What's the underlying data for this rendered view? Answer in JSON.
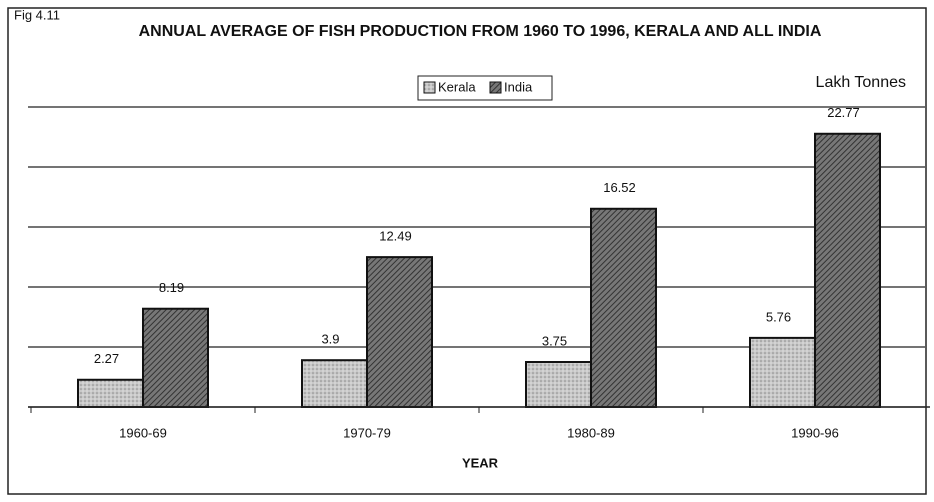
{
  "chart_data": {
    "type": "bar",
    "figure_label": "Fig 4.11",
    "title": "ANNUAL AVERAGE OF FISH PRODUCTION FROM 1960 TO 1996, KERALA AND ALL INDIA",
    "ylabel": "Lakh Tonnes",
    "xlabel": "YEAR",
    "categories": [
      "1960-69",
      "1970-79",
      "1980-89",
      "1990-96"
    ],
    "series": [
      {
        "name": "Kerala",
        "color": "#c8c8c8",
        "values": [
          2.27,
          3.9,
          3.75,
          5.76
        ]
      },
      {
        "name": "India",
        "color": "#666666",
        "values": [
          8.19,
          12.49,
          16.52,
          22.77
        ]
      }
    ],
    "ylim": [
      0,
      25
    ],
    "yticks": [
      0,
      5,
      10,
      15,
      20,
      25
    ],
    "grid": true
  }
}
